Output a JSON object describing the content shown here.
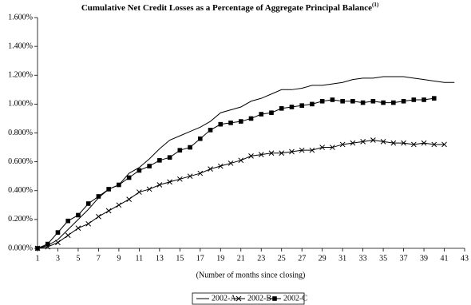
{
  "chart_data": {
    "type": "line",
    "title": "Cumulative Net Credit Losses as a Percentage of Aggregate Principal Balance",
    "title_note": "(1)",
    "x_label": "(Number of months since closing)",
    "x": [
      1,
      2,
      3,
      4,
      5,
      6,
      7,
      8,
      9,
      10,
      11,
      12,
      13,
      14,
      15,
      16,
      17,
      18,
      19,
      20,
      21,
      22,
      23,
      24,
      25,
      26,
      27,
      28,
      29,
      30,
      31,
      32,
      33,
      34,
      35,
      36,
      37,
      38,
      39,
      40,
      41,
      42
    ],
    "xlim": [
      1,
      43
    ],
    "xticks": [
      1,
      3,
      5,
      7,
      9,
      11,
      13,
      15,
      17,
      19,
      21,
      23,
      25,
      27,
      29,
      31,
      33,
      35,
      37,
      39,
      41,
      43
    ],
    "ylim": [
      0,
      1.6
    ],
    "yticks": [
      {
        "value": 0,
        "label": "0.000%"
      },
      {
        "value": 0.2,
        "label": "0.200%"
      },
      {
        "value": 0.4,
        "label": "0.400%"
      },
      {
        "value": 0.6,
        "label": "0.600%"
      },
      {
        "value": 0.8,
        "label": "0.800%"
      },
      {
        "value": 1.0,
        "label": "1.000%"
      },
      {
        "value": 1.2,
        "label": "1.200%"
      },
      {
        "value": 1.4,
        "label": "1.400%"
      },
      {
        "value": 1.6,
        "label": "1.600%"
      }
    ],
    "legend": "bottom",
    "series": [
      {
        "name": "2002-A",
        "color": "#000000",
        "marker": "none",
        "values": [
          0,
          0.02,
          0.06,
          0.13,
          0.2,
          0.27,
          0.35,
          0.41,
          0.44,
          0.52,
          0.56,
          0.62,
          0.69,
          0.75,
          0.78,
          0.81,
          0.84,
          0.88,
          0.94,
          0.96,
          0.98,
          1.02,
          1.04,
          1.07,
          1.1,
          1.1,
          1.11,
          1.13,
          1.13,
          1.14,
          1.15,
          1.17,
          1.18,
          1.18,
          1.19,
          1.19,
          1.19,
          1.18,
          1.17,
          1.16,
          1.15,
          1.15
        ]
      },
      {
        "name": "2002-B",
        "color": "#000000",
        "marker": "x",
        "values": [
          0,
          0.01,
          0.04,
          0.09,
          0.14,
          0.17,
          0.22,
          0.26,
          0.3,
          0.34,
          0.39,
          0.41,
          0.44,
          0.46,
          0.48,
          0.5,
          0.52,
          0.55,
          0.57,
          0.59,
          0.61,
          0.64,
          0.65,
          0.66,
          0.66,
          0.67,
          0.68,
          0.68,
          0.7,
          0.7,
          0.72,
          0.73,
          0.74,
          0.75,
          0.74,
          0.73,
          0.73,
          0.72,
          0.73,
          0.72,
          0.72,
          null
        ]
      },
      {
        "name": "2002-C",
        "color": "#000000",
        "marker": "square",
        "values": [
          0,
          0.03,
          0.11,
          0.19,
          0.23,
          0.31,
          0.36,
          0.41,
          0.44,
          0.49,
          0.54,
          0.57,
          0.61,
          0.63,
          0.68,
          0.7,
          0.76,
          0.82,
          0.86,
          0.87,
          0.88,
          0.9,
          0.93,
          0.94,
          0.97,
          0.98,
          0.99,
          1.0,
          1.02,
          1.03,
          1.02,
          1.02,
          1.01,
          1.02,
          1.01,
          1.01,
          1.02,
          1.03,
          1.03,
          1.04,
          null,
          null
        ]
      }
    ]
  }
}
